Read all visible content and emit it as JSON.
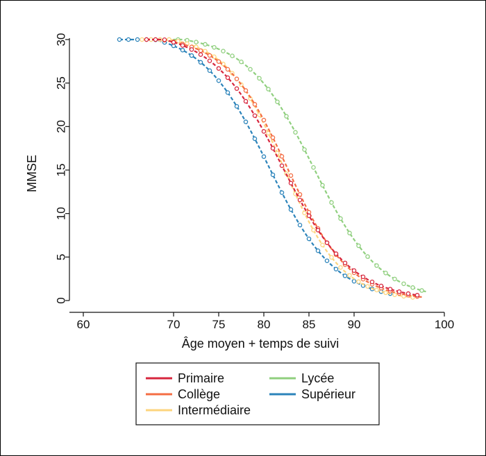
{
  "chart_data": {
    "type": "line",
    "title": "",
    "xlabel": "Âge moyen + temps de suivi",
    "ylabel": "MMSE",
    "xlim": [
      56,
      100
    ],
    "ylim": [
      -1,
      31
    ],
    "xticks": [
      60,
      70,
      75,
      80,
      85,
      90,
      100
    ],
    "yticks": [
      0,
      5,
      10,
      15,
      20,
      25,
      30
    ],
    "grid": false,
    "legend_position": "bottom",
    "series": [
      {
        "name": "Primaire",
        "color": "#d7263d",
        "x_start": 67.0,
        "x_end": 97.0,
        "midpoint": 82.0,
        "steepness": 0.26,
        "y_top": 31.0,
        "y_bottom": 0.0
      },
      {
        "name": "Collège",
        "color": "#f46d43",
        "x_start": 67.0,
        "x_end": 97.5,
        "midpoint": 82.6,
        "steepness": 0.29,
        "y_top": 30.5,
        "y_bottom": 0.0
      },
      {
        "name": "Intermédiaire",
        "color": "#fdd57e",
        "x_start": 66.5,
        "x_end": 96.5,
        "midpoint": 82.2,
        "steepness": 0.31,
        "y_top": 30.6,
        "y_bottom": 0.0
      },
      {
        "name": "Lycée",
        "color": "#8fcf7e",
        "x_start": 67.5,
        "x_end": 98.0,
        "midpoint": 85.5,
        "steepness": 0.27,
        "y_top": 30.6,
        "y_bottom": 0.0
      },
      {
        "name": "Supérieur",
        "color": "#2b83ba",
        "x_start": 64.0,
        "x_end": 94.5,
        "midpoint": 80.5,
        "steepness": 0.27,
        "y_top": 31.0,
        "y_bottom": 0.0
      }
    ]
  }
}
